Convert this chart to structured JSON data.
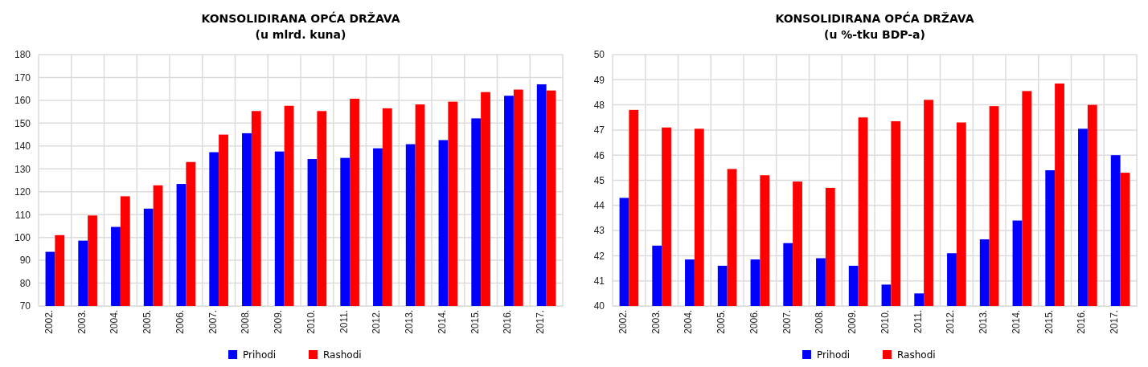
{
  "chart_data": [
    {
      "type": "bar",
      "title": "KONSOLIDIRANA OPĆA DRŽAVA",
      "subtitle": "(u mlrd. kuna)",
      "categories": [
        "2002.",
        "2003.",
        "2004.",
        "2005.",
        "2006.",
        "2007.",
        "2008.",
        "2009.",
        "2010.",
        "2011.",
        "2012.",
        "2013.",
        "2014.",
        "2015.",
        "2016.",
        "2017."
      ],
      "series": [
        {
          "name": "Prihodi",
          "color": "#0000ff",
          "values": [
            93.7,
            98.6,
            104.6,
            112.6,
            123.4,
            137.3,
            145.6,
            137.6,
            134.3,
            134.8,
            139,
            140.8,
            142.6,
            152.1,
            162,
            167
          ]
        },
        {
          "name": "Rashodi",
          "color": "#ff0000",
          "values": [
            101,
            109.6,
            118,
            122.8,
            133,
            145,
            155.3,
            157.6,
            155.3,
            160.7,
            156.5,
            158.2,
            159.4,
            163.6,
            164.7,
            164.3
          ]
        }
      ],
      "ylim": [
        70,
        180
      ],
      "yticks": [
        70,
        80,
        90,
        100,
        110,
        120,
        130,
        140,
        150,
        160,
        170,
        180
      ],
      "grid": true,
      "legend": "bottom"
    },
    {
      "type": "bar",
      "title": "KONSOLIDIRANA OPĆA DRŽAVA",
      "subtitle": "(u %-tku BDP-a)",
      "categories": [
        "2002.",
        "2003.",
        "2004.",
        "2005.",
        "2006.",
        "2007.",
        "2008.",
        "2009.",
        "2010.",
        "2011.",
        "2012.",
        "2013.",
        "2014.",
        "2015.",
        "2016.",
        "2017."
      ],
      "series": [
        {
          "name": "Prihodi",
          "color": "#0000ff",
          "values": [
            44.3,
            42.4,
            41.85,
            41.6,
            41.85,
            42.5,
            41.9,
            41.6,
            40.85,
            40.5,
            42.1,
            42.65,
            43.4,
            45.4,
            47.05,
            46.0
          ]
        },
        {
          "name": "Rashodi",
          "color": "#ff0000",
          "values": [
            47.8,
            47.1,
            47.05,
            45.45,
            45.2,
            44.95,
            44.7,
            47.5,
            47.35,
            48.2,
            47.3,
            47.95,
            48.55,
            48.85,
            48.0,
            45.3
          ]
        }
      ],
      "ylim": [
        40,
        50
      ],
      "yticks": [
        40,
        41,
        42,
        43,
        44,
        45,
        46,
        47,
        48,
        49,
        50
      ],
      "grid": true,
      "legend": "bottom"
    }
  ]
}
